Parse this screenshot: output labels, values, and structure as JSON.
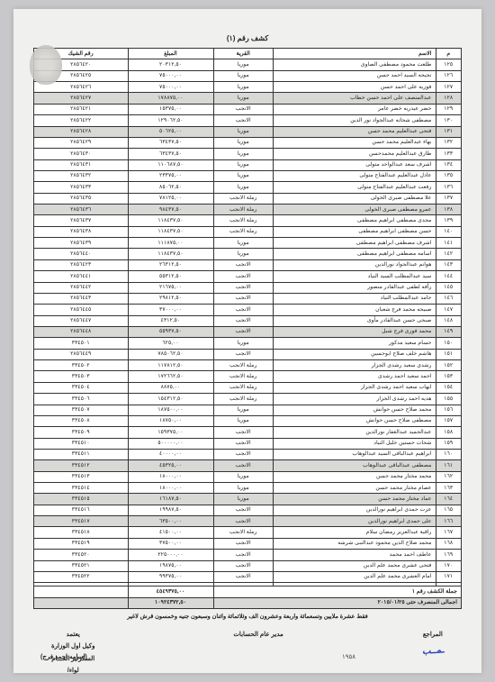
{
  "title": "كشف رقم (١)",
  "columns": [
    "م",
    "الاسم",
    "القرية",
    "المبلغ",
    "رقم الشيك"
  ],
  "rows": [
    {
      "i": "١٢٥",
      "n": "طلعت محمود مصطفى الصاوى",
      "v": "موريا",
      "a": "٢٠٣١٢,٥٠",
      "c": "٢٨٥٦٤٢٠",
      "h": false
    },
    {
      "i": "١٢٦",
      "n": "نجيحه السيد احمد حسن",
      "v": "موريا",
      "a": "٧٥٠٠٠,٠٠",
      "c": "٢٨٥٦٤٢٥",
      "h": false
    },
    {
      "i": "١٢٧",
      "n": "فوزيه على احمد حسن",
      "v": "موريا",
      "a": "٧٥٠٠٠,٠٠",
      "c": "٢٨٥٦٤٢٦",
      "h": false
    },
    {
      "i": "١٢٨",
      "n": "عبدالمنصف على احمد حسن خطاب",
      "v": "موريا",
      "a": "١٧٨٨٧٥,٠٠",
      "c": "٢٨٥٦٤٢٧",
      "h": true
    },
    {
      "i": "١٢٩",
      "n": "خضر عيدريه خضر عامر",
      "v": "الانجب",
      "a": "١٥٣٧٥,٠٠",
      "c": "٢٨٥٦٤٢١",
      "h": false
    },
    {
      "i": "١٣٠",
      "n": "مصطفى شحاته عبدالجواد نور الدين",
      "v": "الانجب",
      "a": "١٢٩٠٦٢,٥٠",
      "c": "٢٨٥٦٤٢٢",
      "h": false
    },
    {
      "i": "١٣١",
      "n": "فتحى عبدالعليم محمد حسن",
      "v": "موريا",
      "a": "٥٠٦٢٥,٠٠",
      "c": "٢٨٥٦٤٢٨",
      "h": true
    },
    {
      "i": "١٣٢",
      "n": "بهاء عبدالعليم محمد حسن",
      "v": "موريا",
      "a": "٦٣٤٣٧,٥٠",
      "c": "٢٨٥٦٤٢٩",
      "h": false
    },
    {
      "i": "١٣٣",
      "n": "طارق عبدالعليم محمدحسن",
      "v": "موريا",
      "a": "٦٣٤٣٧,٥٠",
      "c": "٢٨٥٦٤٣٠",
      "h": false
    },
    {
      "i": "١٣٤",
      "n": "اشرف سعد عبدالواحد متولى",
      "v": "موريا",
      "a": "١١٠٦٨٧,٥٠",
      "c": "٢٨٥٦٤٣١",
      "h": false
    },
    {
      "i": "١٣٥",
      "n": "عادل عبدالعليم عبدالفتاح متولى",
      "v": "موريا",
      "a": "٢٣٣٧٥,٠٠",
      "c": "٢٨٥٦٤٣٢",
      "h": false
    },
    {
      "i": "١٣٦",
      "n": "رفعت عبدالعليم عبدالفتاح متولى",
      "v": "موريا",
      "a": "٨٥٠٦٢,٥٠",
      "c": "٢٨٥٦٤٣٣",
      "h": false
    },
    {
      "i": "١٣٧",
      "n": "علا مصطفى صبرى الخولى",
      "v": "رملة الانجب",
      "a": "٧٨١٢٥,٠٠",
      "c": "٢٨٥٦٤٣٥",
      "h": false
    },
    {
      "i": "١٣٨",
      "n": "عمرو مصطفى صبرى الخولى",
      "v": "رملة الانجب",
      "a": "٩٨٤٣٧,٥٠",
      "c": "٢٨٥٦٤٣٦",
      "h": true
    },
    {
      "i": "١٣٩",
      "n": "مجدى مصطفى ابراهيم مصطفى",
      "v": "رملة الانجب",
      "a": "١١٨٤٣٧,٥٠",
      "c": "٢٨٥٦٤٣٧",
      "h": false
    },
    {
      "i": "١٤٠",
      "n": "حسن مصطفى ابراهيم مصطفى",
      "v": "رملة الانجب",
      "a": "١١٨٤٣٧,٥٠",
      "c": "٢٨٥٦٤٣٨",
      "h": false
    },
    {
      "i": "١٤١",
      "n": "اشرف مصطفى ابراهيم مصطفى",
      "v": "موريا",
      "a": "١١١٨٧٥,٠٠",
      "c": "٢٨٥٦٤٣٩",
      "h": false
    },
    {
      "i": "١٤٢",
      "n": "اسامه مصطفى ابراهيم مصطفى",
      "v": "موريا",
      "a": "١١٨٤٣٧,٥٠",
      "c": "٢٨٥٦٤٤٠",
      "h": false
    },
    {
      "i": "١٤٣",
      "n": "هوانم عبدالجواد نورالدين",
      "v": "الانجب",
      "a": "٢٦٣١٢,٥٠",
      "c": "٢٨٥٦٤٢٣",
      "h": false
    },
    {
      "i": "١٤٤",
      "n": "سيد عبدالمطلب السيد النياد",
      "v": "الانجب",
      "a": "٥٥٣١٢,٥٠",
      "c": "٢٨٥٦٤٤١",
      "h": false
    },
    {
      "i": "١٤٥",
      "n": "رأفه لطفى عبدالقادر منصور",
      "v": "الانجب",
      "a": "٢١٦٧٥,٠٠",
      "c": "٢٨٥٦٤٤٢",
      "h": false
    },
    {
      "i": "١٤٦",
      "n": "حامد عبدالمطلب النياد",
      "v": "الانجب",
      "a": "٢٩٨١٢,٥٠",
      "c": "٢٨٥٦٤٤٣",
      "h": false
    },
    {
      "i": "١٤٧",
      "n": "صبيحه محمد فرج شعبان",
      "v": "الانجب",
      "a": "٣٧٠٠٠,٠٠",
      "c": "٢٨٥٦٤٤٥",
      "h": false
    },
    {
      "i": "١٤٨",
      "n": "صبحى حسن عبدالقادر مأوى",
      "v": "الانجب",
      "a": "٤٣١٢,٥٠",
      "c": "٢٨٥٦٤٤٧",
      "h": false
    },
    {
      "i": "١٤٩",
      "n": "محمد فوزى فرج شبل",
      "v": "الانجب",
      "a": "٥٥٩٣٧,٥٠",
      "c": "٢٨٥٦٤٤٨",
      "h": true
    },
    {
      "i": "١٥٠",
      "n": "حسام سعيد مدكور",
      "v": "موريا",
      "a": "٦٢٥,٠٠",
      "c": "٣٣٤٥٠١",
      "h": false
    },
    {
      "i": "١٥١",
      "n": "هاشم خلف صلاح ابوحسين",
      "v": "الانجب",
      "a": "٧٨٥٠٦٢,٥٠",
      "c": "٢٨٥٦٤٤٩",
      "h": false
    },
    {
      "i": "١٥٢",
      "n": "رشدى سعيد رشدى الجزار",
      "v": "رملة الانجب",
      "a": "١١٧٨١٢,٥٠",
      "c": "٣٣٤٥٠٢",
      "h": false
    },
    {
      "i": "١٥٣",
      "n": "احمد سعيد احمد رشدى",
      "v": "رملة الانجب",
      "a": "١٧٢٦٦٢,٥٠",
      "c": "٣٣٤٥٠٣",
      "h": false
    },
    {
      "i": "١٥٤",
      "n": "ايهاب سعيد احمد رشدى الجزار",
      "v": "رملة الانجب",
      "a": "٨٨٧٥,٠٠",
      "c": "٣٣٤٥٠٤",
      "h": false
    },
    {
      "i": "١٥٥",
      "n": "هديه احمد رشدى الجزار",
      "v": "رملة الانجب",
      "a": "١٥٤٣١٢,٥٠",
      "c": "٣٣٤٥٠٦",
      "h": false
    },
    {
      "i": "١٥٦",
      "n": "محمد صلاح حسن حوانش",
      "v": "موريا",
      "a": "١٨٧٥٠٠,٠٠",
      "c": "٣٣٤٥٠٧",
      "h": false
    },
    {
      "i": "١٥٧",
      "n": "مصطفى صلاح حسن حوانش",
      "v": "موريا",
      "a": "١٨٧٥٠,٠٠",
      "c": "٣٣٤٥٠٨",
      "h": false
    },
    {
      "i": "١٥٨",
      "n": "عبدالحميد عبدالغفار نورالدين",
      "v": "الانجب",
      "a": "١٥٩٣٧٥,٠٠",
      "c": "٣٣٤٥٠٩",
      "h": false
    },
    {
      "i": "١٥٩",
      "n": "شحات حسنين خليل النياد",
      "v": "الانجب",
      "a": "٥٠٠٠٠٠,٠٠",
      "c": "٣٣٤٥١٠",
      "h": false
    },
    {
      "i": "١٦٠",
      "n": "ابراهيم عبدالباقى السيد عبدالوهاب",
      "v": "الانجب",
      "a": "٤٠٠٠٠,٠٠",
      "c": "٣٣٤٥١١",
      "h": false
    },
    {
      "i": "١٦١",
      "n": "مصطفى عبدالباقى عبدالوهاب",
      "v": "الانجب",
      "a": "٤٥٣٢٥,٠٠",
      "c": "٣٣٤٥١٢",
      "h": true
    },
    {
      "i": "١٦٢",
      "n": "محمد مختار محمد حسن",
      "v": "موريا",
      "a": "١٨٠٠٠,٠٠",
      "c": "٣٣٤٥١٣",
      "h": false
    },
    {
      "i": "١٦٣",
      "n": "عصام مختار محمد حسن",
      "v": "موريا",
      "a": "١٨٠٠٠,٠٠",
      "c": "٣٣٤٥١٤",
      "h": false
    },
    {
      "i": "١٦٤",
      "n": "عماد مختار محمد حسن",
      "v": "موريا",
      "a": "١٦١٨٧,٥٠",
      "c": "٣٣٤٥١٥",
      "h": true
    },
    {
      "i": "١٦٥",
      "n": "عزت حمدى ابراهيم نورالدين",
      "v": "الانجب",
      "a": "١٩٩٨٧,٥٠",
      "c": "٣٣٤٥١٦",
      "h": false
    },
    {
      "i": "١٦٦",
      "n": "على حمدى ابراهيم نورالدين",
      "v": "الانجب",
      "a": "٦٣٥٠٠,٠٠",
      "c": "٣٣٤٥١٧",
      "h": true
    },
    {
      "i": "١٦٧",
      "n": "راقية عبدالعزيز رمضان سلام",
      "v": "رملة الانجب",
      "a": "٤١٥٠٠,٠٠",
      "c": "٣٣٤٥١٨",
      "h": false
    },
    {
      "i": "١٦٨",
      "n": "محمد صلاح الدين محمود عبدالنبى شرشه",
      "v": "الانجب",
      "a": "٣٧٥٠٠,٠٠",
      "c": "٣٣٤٥١٩",
      "h": false
    },
    {
      "i": "١٦٩",
      "n": "عاطف احمد محمد",
      "v": "الانجب",
      "a": "٢٢٥٠٠٠,٠٠",
      "c": "٣٣٤٥٢٠",
      "h": false
    },
    {
      "i": "١٧٠",
      "n": "فتحى عشرى محمد علم الدين",
      "v": "الانجب",
      "a": "١٩٨٧٥,٠٠",
      "c": "٣٣٤٥٢١",
      "h": false
    },
    {
      "i": "١٧١",
      "n": "امام العشرى محمد علم الدين",
      "v": "الانجب",
      "a": "٩٩٣٧٥,٠٠",
      "c": "٣٣٤٥٢٢",
      "h": false
    }
  ],
  "totals": [
    {
      "label": "جملة الكشف رقم ١",
      "amount": "٤٥٤٩٣٧٥,٠٠"
    },
    {
      "label": "اجمالى المنصرف حتى  ٢٠١٥/٠١/٢٥",
      "amount": "١٠٩٢٤٣٧٢,٥٠"
    }
  ],
  "footer_line": "فقط عشرة ملايين وتسعمائة واربعة وعشرون الف وثلاثمائة واثنان وسبعون جنيه وخمسون قرش لاغير",
  "sig": {
    "right_label": "المراجع",
    "center_label": "مدير عام الحسابات",
    "left_l1": "يعتمد",
    "left_l2": "وكيل اول الوزارة",
    "left_l3": "السكرتير العـــام",
    "left_l4": "لواء/"
  },
  "page_num": "١٩٥٨",
  "name_bracket": "(اسامه احمد فرج)"
}
